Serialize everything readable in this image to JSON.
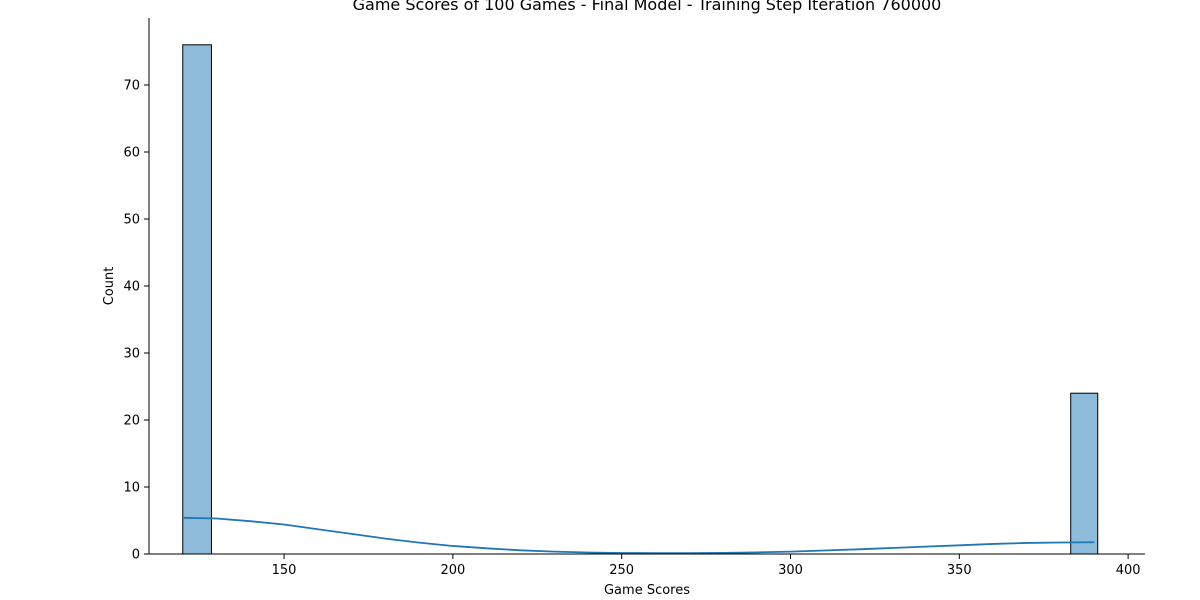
{
  "chart_data": {
    "type": "bar",
    "title": "Game Scores of 100 Games - Final Model - Training Step Iteration 760000",
    "xlabel": "Game Scores",
    "ylabel": "Count",
    "xlim": [
      110,
      405
    ],
    "ylim": [
      0,
      80
    ],
    "x_ticks": [
      150,
      200,
      250,
      300,
      350,
      400
    ],
    "y_ticks": [
      0,
      10,
      20,
      30,
      40,
      50,
      60,
      70
    ],
    "grid": false,
    "bins": [
      {
        "x_start": 120,
        "x_end": 128.5,
        "count": 76
      },
      {
        "x_start": 383,
        "x_end": 391,
        "count": 24
      }
    ],
    "kde": {
      "name": "",
      "x": [
        120,
        130,
        140,
        150,
        160,
        170,
        180,
        190,
        200,
        210,
        220,
        230,
        240,
        250,
        260,
        270,
        280,
        290,
        300,
        310,
        320,
        330,
        340,
        350,
        360,
        370,
        380,
        390
      ],
      "y": [
        5.4,
        5.3,
        4.9,
        4.4,
        3.7,
        3.0,
        2.3,
        1.7,
        1.2,
        0.85,
        0.55,
        0.35,
        0.22,
        0.15,
        0.12,
        0.12,
        0.16,
        0.24,
        0.36,
        0.52,
        0.7,
        0.9,
        1.1,
        1.3,
        1.5,
        1.65,
        1.72,
        1.75
      ]
    },
    "colors": {
      "bar_fill": "#8fbbdb",
      "bar_edge": "#000000",
      "kde_line": "#1f77b4"
    }
  }
}
